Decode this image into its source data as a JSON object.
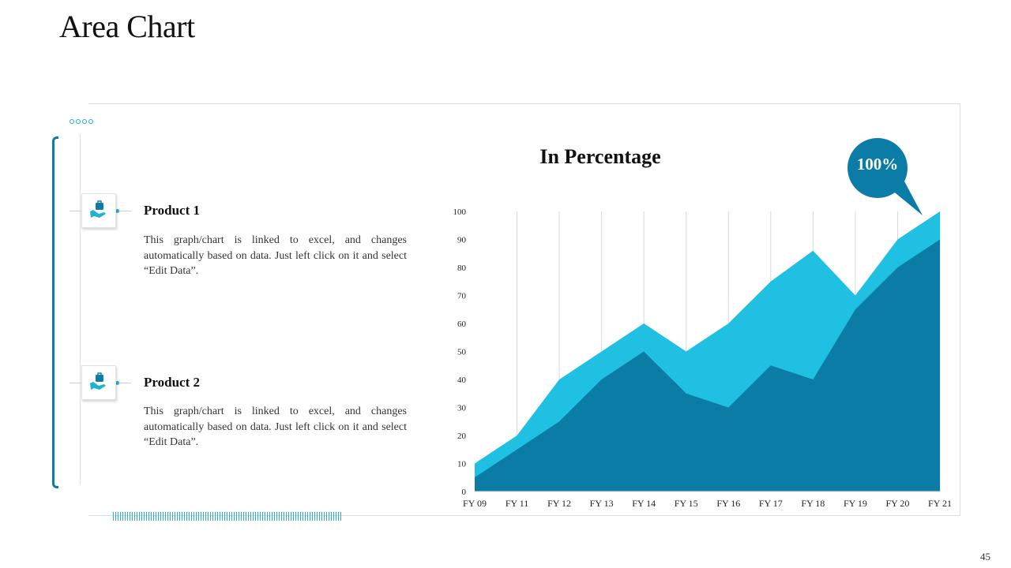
{
  "page": {
    "title": "Area Chart",
    "page_number": "45"
  },
  "products": [
    {
      "title": "Product 1",
      "description": "This graph/chart is linked to excel, and changes automatically based on data. Just left click on it and select “Edit Data”."
    },
    {
      "title": "Product 2",
      "description": "This graph/chart is linked to excel, and changes automatically based on data. Just left click on it and select “Edit Data”."
    }
  ],
  "colors": {
    "series_light": "#1fc0e2",
    "series_dark": "#0a7ca5",
    "accent": "#1fb3d2",
    "bubble": "#0a7ca5"
  },
  "icons": {
    "product": "hand-holding-briefcase-icon"
  },
  "chart_data": {
    "type": "area",
    "title": "In Percentage",
    "categories": [
      "FY 09",
      "FY 11",
      "FY 12",
      "FY 13",
      "FY 14",
      "FY 15",
      "FY 16",
      "FY 17",
      "FY 18",
      "FY 19",
      "FY 20",
      "FY 21"
    ],
    "series": [
      {
        "values": [
          10,
          20,
          40,
          50,
          60,
          50,
          60,
          75,
          86,
          70,
          90,
          100
        ]
      },
      {
        "values": [
          5,
          15,
          25,
          40,
          50,
          35,
          30,
          45,
          40,
          65,
          80,
          90
        ]
      }
    ],
    "ylim": [
      0,
      100
    ],
    "yticks": [
      0,
      10,
      20,
      30,
      40,
      50,
      60,
      70,
      80,
      90,
      100
    ],
    "grid": "vertical",
    "annotation": "100%"
  }
}
